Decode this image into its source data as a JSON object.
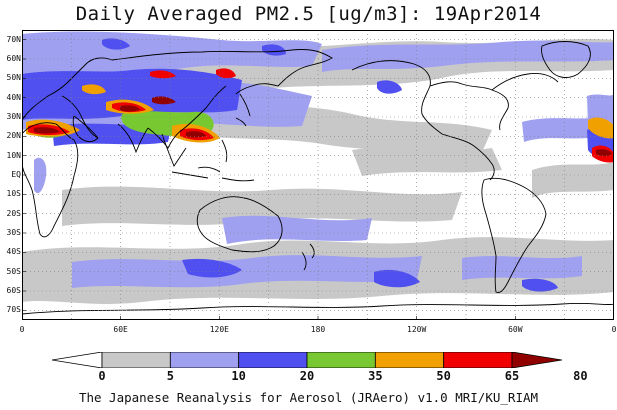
{
  "title": "Daily Averaged PM2.5 [ug/m3]: 19Apr2014",
  "footer": "The Japanese Reanalysis for Aerosol (JRAero) v1.0 MRI/KU_RIAM",
  "map": {
    "projection": "equirectangular",
    "lon_range": [
      0,
      360
    ],
    "lat_range": [
      -75,
      75
    ],
    "grid": "dotted",
    "lat_labels": [
      "70N",
      "60N",
      "50N",
      "40N",
      "30N",
      "20N",
      "10N",
      "EQ",
      "10S",
      "20S",
      "30S",
      "40S",
      "50S",
      "60S",
      "70S"
    ],
    "lat_values": [
      70,
      60,
      50,
      40,
      30,
      20,
      10,
      0,
      -10,
      -20,
      -30,
      -40,
      -50,
      -60,
      -70
    ],
    "lon_labels": [
      "0",
      "60E",
      "120E",
      "180",
      "120W",
      "60W",
      "0"
    ],
    "lon_values": [
      0,
      60,
      120,
      180,
      240,
      300,
      360
    ]
  },
  "colorbar": {
    "thresholds": [
      "0",
      "5",
      "10",
      "20",
      "35",
      "50",
      "65",
      "80"
    ],
    "colors": [
      "#ffffff",
      "#c8c8c8",
      "#a0a0f0",
      "#5050f0",
      "#78c832",
      "#f0a000",
      "#f00000",
      "#900000"
    ],
    "gray": "#c8c8c8",
    "light_blue": "#a0a0f0",
    "blue": "#5050f0",
    "green": "#78c832",
    "orange": "#f0a000",
    "red": "#f00000",
    "darkred": "#900000"
  }
}
